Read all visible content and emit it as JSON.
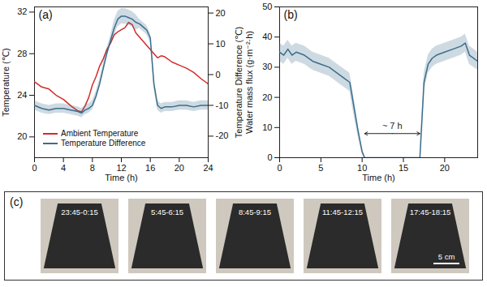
{
  "chart_data": [
    {
      "type": "line",
      "title": "(a)",
      "xlabel": "Time (h)",
      "ylabel": "Temperature (℃)",
      "y2label": "Temperature Difference (℃)",
      "xlim": [
        0,
        24
      ],
      "xticks": [
        0,
        4,
        8,
        12,
        16,
        20,
        24
      ],
      "ylim": [
        18,
        32.5
      ],
      "yticks": [
        20,
        24,
        28,
        32
      ],
      "y2lim": [
        -27,
        22
      ],
      "y2ticks": [
        -20,
        -10,
        0,
        10,
        20
      ],
      "legend": "bottom",
      "x": [
        0,
        1,
        2,
        3,
        4,
        5,
        6,
        6.5,
        7,
        7.5,
        8,
        8.5,
        9,
        9.5,
        10,
        10.5,
        11,
        11.5,
        12,
        12.5,
        13,
        13.5,
        14,
        14.5,
        15,
        15.5,
        16,
        16.5,
        17,
        17.5,
        18,
        19,
        20,
        21,
        22,
        23,
        24
      ],
      "series": [
        {
          "name": "Ambient Temperature",
          "color": "#d42a2a",
          "values": [
            25.3,
            24.8,
            24.6,
            24.0,
            23.6,
            23.0,
            22.5,
            22.4,
            23.0,
            23.8,
            25.0,
            25.8,
            26.8,
            27.5,
            28.4,
            29.0,
            29.8,
            30.1,
            30.3,
            30.5,
            31.0,
            30.8,
            30.0,
            29.6,
            29.2,
            28.8,
            28.4,
            28.0,
            27.6,
            27.8,
            27.7,
            27.2,
            26.9,
            26.6,
            26.2,
            25.6,
            25.1
          ]
        },
        {
          "name": "Temperature Difference",
          "color": "#3b6d8c",
          "axis": "y2",
          "values": [
            -10,
            -11,
            -11.5,
            -11,
            -11,
            -11.5,
            -12,
            -12.5,
            -11.5,
            -11,
            -10,
            -7,
            -3,
            2,
            7,
            11,
            15,
            18,
            19,
            19,
            18.5,
            18,
            17,
            16.5,
            15.5,
            14.5,
            12,
            -3,
            -10,
            -11,
            -10.5,
            -10.5,
            -10,
            -10,
            -10.5,
            -10,
            -10
          ],
          "errors": [
            1.5,
            1.5,
            1.5,
            1.5,
            1.5,
            1.5,
            1.5,
            1.5,
            1.5,
            1.5,
            1.5,
            1.5,
            1.5,
            1.5,
            1.5,
            1.5,
            2.5,
            2.5,
            2.5,
            2.5,
            2.5,
            2.5,
            2.5,
            1.5,
            1.5,
            1.5,
            1.5,
            1.5,
            1.5,
            1.5,
            1.5,
            1.5,
            1.5,
            1.5,
            1.5,
            1.5,
            1.5
          ]
        }
      ]
    },
    {
      "type": "line",
      "title": "(b)",
      "xlabel": "Time (h)",
      "ylabel": "Water mass flux (g·m⁻²·h)",
      "xlim": [
        0,
        24
      ],
      "xticks": [
        0,
        5,
        10,
        15,
        20
      ],
      "ylim": [
        0,
        50
      ],
      "yticks": [
        0,
        10,
        20,
        30,
        40,
        50
      ],
      "annotation": "~ 7 h",
      "x": [
        0,
        0.5,
        1,
        1.5,
        2,
        3,
        4,
        5,
        6,
        7,
        8,
        8.5,
        9,
        9.5,
        10,
        10.3,
        17,
        17.2,
        17.5,
        18,
        18.5,
        19,
        20,
        21,
        22,
        22.5,
        23,
        24
      ],
      "series": [
        {
          "name": "Water mass flux",
          "color": "#3b6d8c",
          "values": [
            35,
            34,
            36,
            34,
            35,
            34,
            32,
            31,
            30,
            28,
            26,
            25,
            17,
            9,
            2,
            0,
            0,
            10,
            25,
            31,
            33,
            34,
            35,
            36,
            37,
            38,
            34,
            32
          ],
          "errors": [
            3,
            3,
            3,
            3,
            3,
            3,
            3,
            3,
            3,
            3,
            3,
            3,
            3,
            2,
            1,
            0,
            0,
            2,
            3,
            3,
            3,
            3,
            3,
            3,
            3,
            3,
            3,
            3
          ]
        }
      ]
    }
  ],
  "panel_c": {
    "label": "(c)",
    "images": [
      "23:45-0:15",
      "5:45-6:15",
      "8:45-9:15",
      "11:45-12:15",
      "17:45-18:15"
    ],
    "scale_bar": "5 cm"
  }
}
